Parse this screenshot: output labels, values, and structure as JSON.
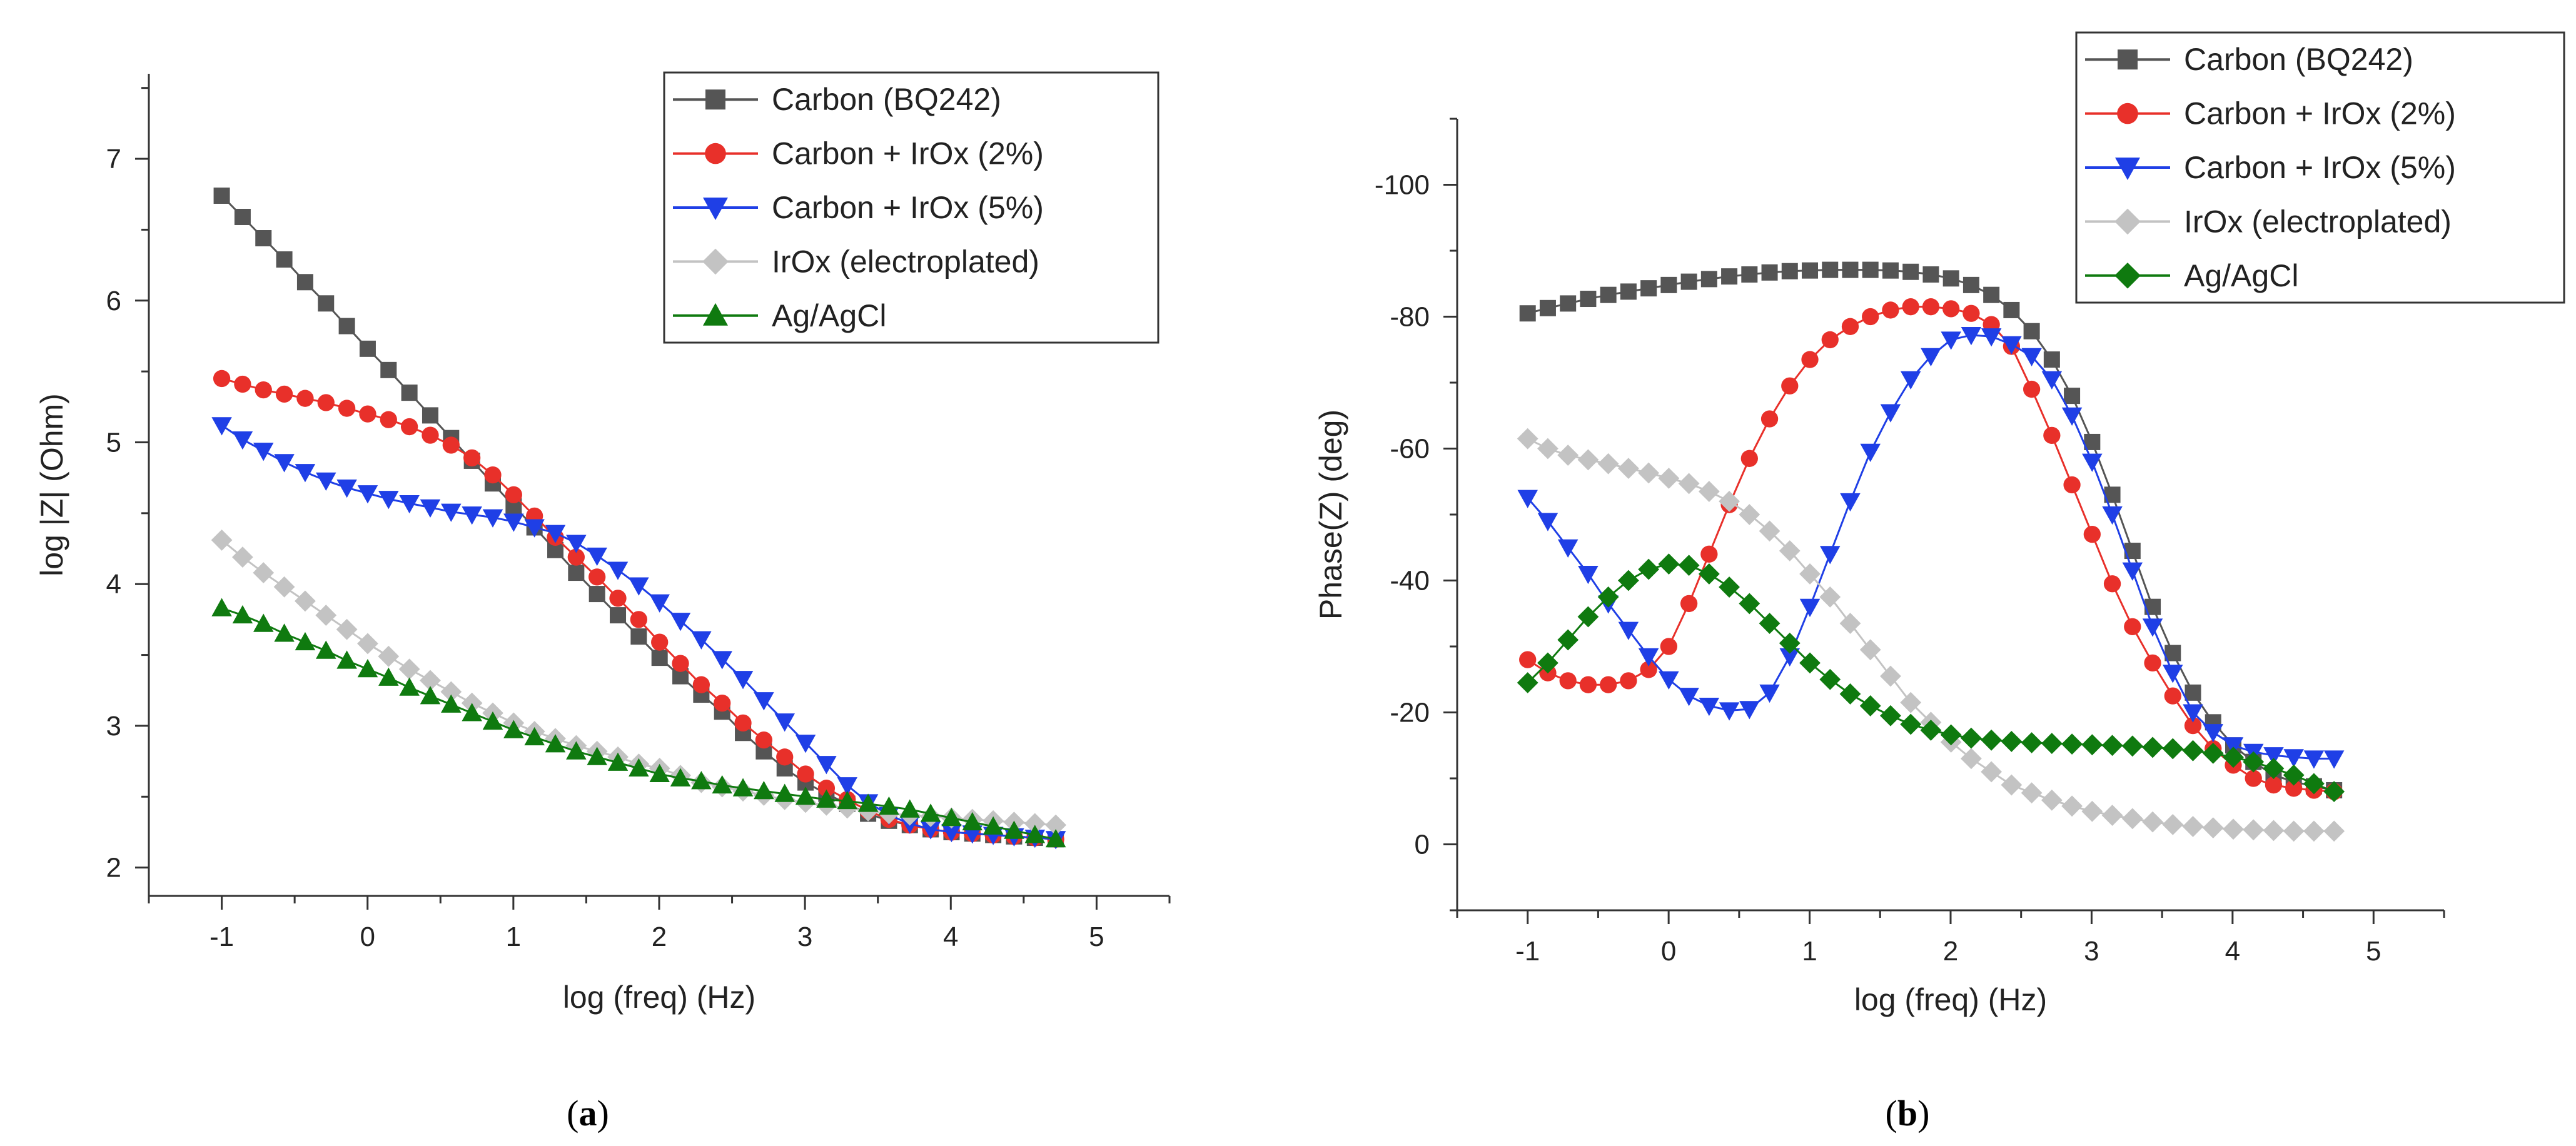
{
  "panels": [
    {
      "label": "a",
      "chart_data": {
        "type": "line",
        "xlabel": "log (freq) (Hz)",
        "ylabel": "log |Z| (Ohm)",
        "xlim": [
          -1.5,
          5.5
        ],
        "ylim": [
          1.8,
          7.6
        ],
        "x_ticks": [
          -1,
          0,
          1,
          2,
          3,
          4,
          5
        ],
        "y_ticks": [
          2,
          3,
          4,
          5,
          6,
          7
        ],
        "y_inverted": false,
        "grid": false,
        "legend_position": "top-right",
        "series": [
          {
            "name": "Carbon (BQ242)",
            "color": "#555555",
            "marker": "square",
            "x_start": -1,
            "x_step": 0.143,
            "values": [
              6.74,
              6.59,
              6.44,
              6.29,
              6.13,
              5.98,
              5.82,
              5.66,
              5.51,
              5.35,
              5.19,
              5.03,
              4.87,
              4.71,
              4.55,
              4.4,
              4.24,
              4.08,
              3.93,
              3.78,
              3.63,
              3.48,
              3.35,
              3.22,
              3.1,
              2.95,
              2.82,
              2.7,
              2.6,
              2.52,
              2.45,
              2.38,
              2.33,
              2.3,
              2.27,
              2.25,
              2.24,
              2.23,
              2.22,
              2.21,
              2.2
            ]
          },
          {
            "name": "Carbon + IrOx (2%)",
            "color": "#e8302a",
            "marker": "circle",
            "x_start": -1,
            "x_step": 0.143,
            "values": [
              5.45,
              5.41,
              5.37,
              5.34,
              5.31,
              5.28,
              5.24,
              5.2,
              5.16,
              5.11,
              5.05,
              4.98,
              4.89,
              4.77,
              4.63,
              4.48,
              4.33,
              4.19,
              4.05,
              3.9,
              3.75,
              3.59,
              3.44,
              3.29,
              3.16,
              3.02,
              2.9,
              2.78,
              2.66,
              2.56,
              2.48,
              2.4,
              2.34,
              2.3,
              2.27,
              2.25,
              2.24,
              2.23,
              2.22,
              2.21,
              2.2
            ]
          },
          {
            "name": "Carbon + IrOx (5%)",
            "color": "#1f3fe6",
            "marker": "triangle-down",
            "x_start": -1,
            "x_step": 0.143,
            "values": [
              5.12,
              5.02,
              4.94,
              4.86,
              4.79,
              4.73,
              4.68,
              4.64,
              4.6,
              4.57,
              4.54,
              4.51,
              4.49,
              4.47,
              4.44,
              4.4,
              4.36,
              4.29,
              4.2,
              4.1,
              3.99,
              3.87,
              3.74,
              3.61,
              3.47,
              3.33,
              3.18,
              3.03,
              2.88,
              2.73,
              2.58,
              2.46,
              2.37,
              2.31,
              2.27,
              2.25,
              2.24,
              2.23,
              2.22,
              2.21,
              2.2
            ]
          },
          {
            "name": "IrOx (electroplated)",
            "color": "#c3c3c3",
            "marker": "diamond",
            "x_start": -1,
            "x_step": 0.143,
            "values": [
              4.31,
              4.19,
              4.08,
              3.98,
              3.88,
              3.78,
              3.68,
              3.58,
              3.49,
              3.4,
              3.32,
              3.24,
              3.16,
              3.09,
              3.02,
              2.96,
              2.91,
              2.86,
              2.82,
              2.78,
              2.73,
              2.7,
              2.65,
              2.6,
              2.57,
              2.54,
              2.51,
              2.48,
              2.46,
              2.44,
              2.42,
              2.4,
              2.38,
              2.37,
              2.36,
              2.35,
              2.34,
              2.33,
              2.32,
              2.31,
              2.3
            ]
          },
          {
            "name": "Ag/AgCl",
            "color": "#0f7a0f",
            "marker": "triangle-up",
            "x_start": -1,
            "x_step": 0.143,
            "values": [
              3.83,
              3.78,
              3.72,
              3.65,
              3.59,
              3.53,
              3.46,
              3.4,
              3.34,
              3.27,
              3.21,
              3.15,
              3.09,
              3.03,
              2.97,
              2.92,
              2.87,
              2.82,
              2.78,
              2.74,
              2.7,
              2.66,
              2.63,
              2.61,
              2.58,
              2.56,
              2.54,
              2.52,
              2.5,
              2.48,
              2.47,
              2.45,
              2.43,
              2.41,
              2.38,
              2.35,
              2.32,
              2.29,
              2.26,
              2.23,
              2.2
            ]
          }
        ]
      }
    },
    {
      "label": "b",
      "chart_data": {
        "type": "line",
        "xlabel": "log (freq) (Hz)",
        "ylabel": "Phase(Z) (deg)",
        "xlim": [
          -1.5,
          5.5
        ],
        "ylim": [
          10,
          -110
        ],
        "x_ticks": [
          -1,
          0,
          1,
          2,
          3,
          4,
          5
        ],
        "y_ticks": [
          -100,
          -80,
          -60,
          -40,
          -20,
          0
        ],
        "y_inverted": true,
        "grid": false,
        "legend_position": "top-right",
        "series": [
          {
            "name": "Carbon (BQ242)",
            "color": "#555555",
            "marker": "square",
            "x_start": -1,
            "x_step": 0.143,
            "values": [
              -80.5,
              -81.3,
              -82.0,
              -82.7,
              -83.3,
              -83.8,
              -84.3,
              -84.8,
              -85.3,
              -85.7,
              -86.1,
              -86.4,
              -86.7,
              -86.9,
              -87.0,
              -87.1,
              -87.1,
              -87.1,
              -87.0,
              -86.8,
              -86.4,
              -85.8,
              -84.8,
              -83.3,
              -81.0,
              -77.8,
              -73.5,
              -68.0,
              -61.0,
              -53.0,
              -44.5,
              -36.0,
              -29.0,
              -23.0,
              -18.5,
              -15.0,
              -12.5,
              -10.5,
              -9.5,
              -8.8,
              -8.2
            ]
          },
          {
            "name": "Carbon + IrOx (2%)",
            "color": "#e8302a",
            "marker": "circle",
            "x_start": -1,
            "x_step": 0.143,
            "values": [
              -28.0,
              -26.0,
              -24.8,
              -24.2,
              -24.2,
              -24.8,
              -26.5,
              -30.0,
              -36.5,
              -44.0,
              -51.5,
              -58.5,
              -64.5,
              -69.5,
              -73.5,
              -76.5,
              -78.5,
              -80.0,
              -81.0,
              -81.5,
              -81.5,
              -81.2,
              -80.5,
              -78.8,
              -75.5,
              -69.0,
              -62.0,
              -54.5,
              -47.0,
              -39.5,
              -33.0,
              -27.5,
              -22.5,
              -18.0,
              -14.5,
              -12.0,
              -10.0,
              -9.0,
              -8.5,
              -8.2,
              -8.0
            ]
          },
          {
            "name": "Carbon + IrOx (5%)",
            "color": "#1f3fe6",
            "marker": "triangle-down",
            "x_start": -1,
            "x_step": 0.143,
            "values": [
              -52.5,
              -49.0,
              -45.0,
              -41.0,
              -36.5,
              -32.5,
              -28.5,
              -25.0,
              -22.5,
              -21.0,
              -20.3,
              -20.5,
              -23.0,
              -28.5,
              -36.0,
              -44.0,
              -52.0,
              -59.5,
              -65.5,
              -70.5,
              -74.0,
              -76.5,
              -77.2,
              -77.0,
              -75.8,
              -74.0,
              -70.5,
              -65.0,
              -58.0,
              -50.0,
              -41.5,
              -33.0,
              -26.0,
              -20.0,
              -17.0,
              -15.0,
              -14.0,
              -13.5,
              -13.2,
              -13.0,
              -13.0
            ]
          },
          {
            "name": "IrOx (electroplated)",
            "color": "#c3c3c3",
            "marker": "diamond",
            "x_start": -1,
            "x_step": 0.143,
            "values": [
              -61.5,
              -60.0,
              -59.0,
              -58.3,
              -57.7,
              -57.0,
              -56.3,
              -55.5,
              -54.7,
              -53.5,
              -52.0,
              -50.0,
              -47.5,
              -44.5,
              -41.0,
              -37.5,
              -33.5,
              -29.5,
              -25.5,
              -21.5,
              -18.5,
              -15.5,
              -13.0,
              -11.0,
              -9.0,
              -7.8,
              -6.7,
              -5.8,
              -5.0,
              -4.4,
              -3.9,
              -3.4,
              -3.0,
              -2.7,
              -2.5,
              -2.3,
              -2.2,
              -2.1,
              -2.0,
              -2.0,
              -2.0
            ]
          },
          {
            "name": "Ag/AgCl",
            "color": "#0f7a0f",
            "marker": "diamond",
            "x_start": -1,
            "x_step": 0.143,
            "values": [
              -24.5,
              -27.5,
              -31.0,
              -34.5,
              -37.5,
              -40.0,
              -41.7,
              -42.5,
              -42.3,
              -41.0,
              -39.0,
              -36.5,
              -33.5,
              -30.5,
              -27.5,
              -25.0,
              -22.8,
              -21.0,
              -19.5,
              -18.2,
              -17.3,
              -16.6,
              -16.1,
              -15.8,
              -15.6,
              -15.4,
              -15.3,
              -15.2,
              -15.1,
              -15.0,
              -14.9,
              -14.7,
              -14.5,
              -14.2,
              -13.8,
              -13.2,
              -12.5,
              -11.5,
              -10.5,
              -9.2,
              -8.0
            ]
          }
        ]
      }
    }
  ]
}
